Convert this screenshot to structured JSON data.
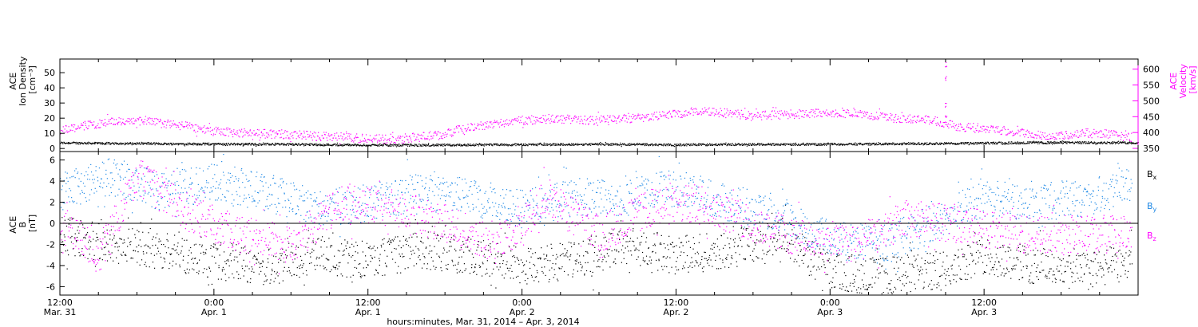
{
  "colors": {
    "axis": "#000000",
    "density": "#000000",
    "velocity": "#ff00ff",
    "bx": "#000000",
    "by": "#1e88e5",
    "bz": "#ff00ff",
    "zero_line": "#000000"
  },
  "chart_data": [
    {
      "type": "scatter",
      "panel": "plasma",
      "y_left_label": [
        "ACE",
        "Ion Density",
        "[cm⁻³]"
      ],
      "y_right_label": [
        "ACE",
        "Velocity",
        "[km/s]"
      ],
      "y_left_ticks": [
        "0",
        "10",
        "20",
        "30",
        "40",
        "50"
      ],
      "y_right_ticks": [
        "350",
        "400",
        "450",
        "500",
        "550",
        "600"
      ],
      "y_left_lim": [
        -2,
        59
      ],
      "y_right_lim": [
        340,
        632
      ],
      "series": [
        {
          "axis": "left",
          "t_hours": [
            0,
            6,
            12,
            18,
            24,
            30,
            36,
            42,
            48,
            54,
            60,
            66,
            70,
            74,
            80,
            84
          ],
          "values": [
            4,
            3.5,
            3.2,
            3,
            2.5,
            2.5,
            2.8,
            3,
            2.7,
            3,
            3,
            3.4,
            3.6,
            4,
            4.2,
            4
          ]
        },
        {
          "axis": "right",
          "t_hours": [
            0,
            3,
            6,
            10,
            12,
            14,
            18,
            22,
            26,
            30,
            31,
            34,
            36,
            38,
            42,
            46,
            48,
            50,
            54,
            58,
            60,
            62,
            64,
            68,
            70,
            72,
            74,
            76,
            78,
            80,
            82,
            83.5
          ],
          "values": [
            410,
            430,
            440,
            420,
            405,
            400,
            395,
            385,
            380,
            395,
            410,
            430,
            440,
            445,
            440,
            450,
            460,
            470,
            455,
            460,
            465,
            460,
            450,
            440,
            420,
            415,
            405,
            395,
            390,
            400,
            395,
            385
          ]
        }
      ],
      "spike": {
        "t_hours": 69,
        "values": [
          448,
          488,
          572,
          615
        ]
      }
    },
    {
      "type": "scatter",
      "panel": "magnetic-field",
      "y_left_label": [
        "ACE",
        "B",
        "[nT]"
      ],
      "y_ticks": [
        "-6",
        "-4",
        "-2",
        "0",
        "2",
        "4",
        "6"
      ],
      "y_lim": [
        -6.8,
        6.8
      ],
      "zero_line": 0,
      "legend": [
        "Bx",
        "By",
        "Bz"
      ],
      "series": [
        {
          "name": "Bx",
          "t_hours": [
            0,
            4,
            8,
            12,
            16,
            20,
            24,
            28,
            32,
            36,
            40,
            44,
            48,
            52,
            56,
            60,
            64,
            68,
            72,
            76,
            80,
            83.5
          ],
          "values": [
            -1,
            -2,
            -2.5,
            -3.5,
            -4,
            -3,
            -3.5,
            -2.5,
            -3,
            -4,
            -3.5,
            -2,
            -3,
            -2.5,
            -1,
            -4.5,
            -5,
            -4.5,
            -3,
            -4,
            -4.5,
            -3.5
          ]
        },
        {
          "name": "By",
          "t_hours": [
            0,
            4,
            8,
            12,
            16,
            20,
            24,
            28,
            32,
            36,
            40,
            44,
            48,
            52,
            56,
            60,
            64,
            68,
            72,
            76,
            80,
            83.5
          ],
          "values": [
            3,
            4.5,
            3,
            4,
            3,
            1.5,
            2,
            3,
            2.5,
            1.5,
            2.5,
            2.5,
            3.5,
            2,
            1,
            -1.5,
            -2,
            0,
            2.5,
            2,
            2.5,
            4
          ]
        },
        {
          "name": "Bz",
          "t_hours": [
            0,
            3,
            6,
            10,
            14,
            18,
            22,
            26,
            30,
            34,
            38,
            42,
            46,
            50,
            54,
            58,
            62,
            66,
            70,
            74,
            78,
            83.5
          ],
          "values": [
            0,
            -3,
            4.5,
            1,
            -1,
            -2,
            2,
            1.5,
            0,
            -2,
            2.5,
            -1,
            1.5,
            2,
            0,
            -1.5,
            -2,
            0.5,
            0,
            -1,
            -1,
            -1
          ]
        }
      ]
    },
    {
      "type": "time-axis",
      "xlim_hours": [
        0,
        84
      ],
      "tick_labels": [
        {
          "t_hours": 0,
          "time": "12:00",
          "date": "Mar. 31"
        },
        {
          "t_hours": 12,
          "time": "0:00",
          "date": "Apr.  1"
        },
        {
          "t_hours": 24,
          "time": "12:00",
          "date": "Apr.  1"
        },
        {
          "t_hours": 36,
          "time": "0:00",
          "date": "Apr.  2"
        },
        {
          "t_hours": 48,
          "time": "12:00",
          "date": "Apr.  2"
        },
        {
          "t_hours": 60,
          "time": "0:00",
          "date": "Apr.  3"
        },
        {
          "t_hours": 72,
          "time": "12:00",
          "date": "Apr.  3"
        }
      ],
      "xlabel": "hours:minutes, Mar. 31, 2014 – Apr.  3, 2014"
    }
  ]
}
